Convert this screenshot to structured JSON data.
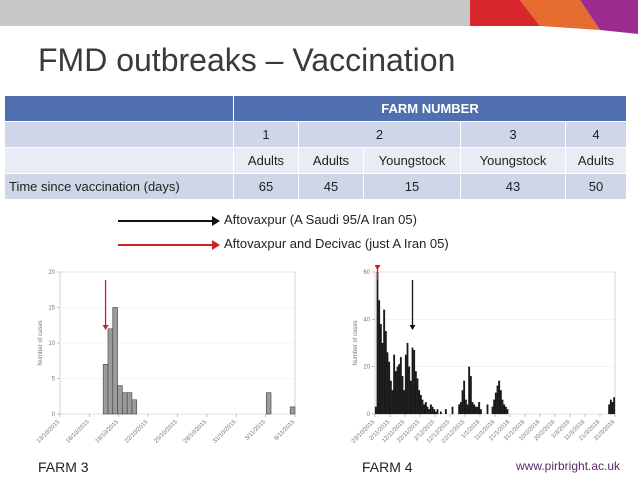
{
  "slide": {
    "title": "FMD outbreaks – Vaccination",
    "footer": "www.pirbright.ac.uk",
    "header_colors": [
      "#d9272e",
      "#e76c2f",
      "#9b2b8f",
      "#c7c7c7"
    ]
  },
  "table": {
    "header": "FARM NUMBER",
    "farms": [
      "1",
      "2",
      "3",
      "4"
    ],
    "types": [
      "Adults",
      "Adults",
      "Youngstock",
      "Youngstock",
      "Adults"
    ],
    "row_label": "Time since vaccination (days)",
    "values": [
      "65",
      "45",
      "15",
      "43",
      "50"
    ]
  },
  "legend": [
    {
      "label": "Aftovaxpur (A Saudi 95/A Iran 05)",
      "color": "#111111"
    },
    {
      "label": "Aftovaxpur and Decivac (just A Iran 05)",
      "color": "#cc2222"
    }
  ],
  "chart_data": [
    {
      "type": "bar",
      "farm_label": "FARM 3",
      "ylabel": "Number of cases",
      "ylim": [
        0,
        20
      ],
      "yticks": [
        0,
        5,
        10,
        15,
        20
      ],
      "x_ticks": [
        "13/10/2015",
        "16/10/2015",
        "19/10/2015",
        "22/10/2015",
        "25/10/2015",
        "28/10/2015",
        "31/10/2015",
        "3/11/2015",
        "6/11/2015"
      ],
      "values": [
        0,
        0,
        0,
        0,
        0,
        0,
        0,
        0,
        0,
        7,
        12,
        15,
        4,
        3,
        3,
        2,
        0,
        0,
        0,
        0,
        0,
        0,
        0,
        0,
        0,
        0,
        0,
        0,
        0,
        0,
        0,
        0,
        0,
        0,
        0,
        0,
        0,
        0,
        0,
        0,
        0,
        0,
        0,
        3,
        0,
        0,
        0,
        0,
        1
      ],
      "arrows": [
        {
          "index": 9,
          "color": "#cc2222"
        }
      ]
    },
    {
      "type": "bar",
      "farm_label": "FARM 4",
      "ylabel": "Number of cases",
      "ylim": [
        0,
        60
      ],
      "yticks": [
        0,
        20,
        40,
        60
      ],
      "x_ticks": [
        "23/10/2015",
        "2/11/2015",
        "12/11/2015",
        "22/11/2015",
        "2/12/2015",
        "12/12/2015",
        "22/12/2015",
        "1/1/2016",
        "11/1/2016",
        "21/1/2016",
        "31/1/2016",
        "10/2/2016",
        "20/2/2016",
        "1/3/2016",
        "11/3/2016",
        "21/3/2016",
        "31/3/2016"
      ],
      "values": [
        3,
        60,
        48,
        38,
        30,
        44,
        35,
        26,
        22,
        14,
        10,
        25,
        18,
        20,
        21,
        24,
        16,
        10,
        25,
        30,
        20,
        14,
        28,
        27,
        18,
        15,
        10,
        8,
        6,
        4,
        5,
        3,
        2,
        4,
        3,
        2,
        1,
        2,
        0,
        1,
        0,
        0,
        2,
        0,
        0,
        0,
        3,
        0,
        0,
        0,
        4,
        5,
        10,
        14,
        6,
        4,
        20,
        16,
        5,
        4,
        3,
        3,
        5,
        2,
        0,
        0,
        0,
        4,
        0,
        0,
        3,
        6,
        9,
        12,
        14,
        10,
        6,
        4,
        3,
        2,
        0,
        0,
        0,
        0,
        0,
        0,
        0,
        0,
        0,
        0,
        0,
        0,
        0,
        0,
        0,
        0,
        0,
        0,
        0,
        0,
        0,
        0,
        0,
        0,
        0,
        0,
        0,
        0,
        0,
        0,
        0,
        0,
        0,
        0,
        0,
        0,
        0,
        0,
        0,
        0,
        0,
        0,
        0,
        0,
        0,
        0,
        0,
        0,
        0,
        0,
        0,
        0,
        0,
        0,
        0,
        0,
        0,
        0,
        0,
        0,
        4,
        6,
        5,
        7
      ],
      "arrows": [
        {
          "index": 1,
          "color": "#cc2222"
        },
        {
          "index": 22,
          "color": "#111111"
        }
      ]
    }
  ]
}
